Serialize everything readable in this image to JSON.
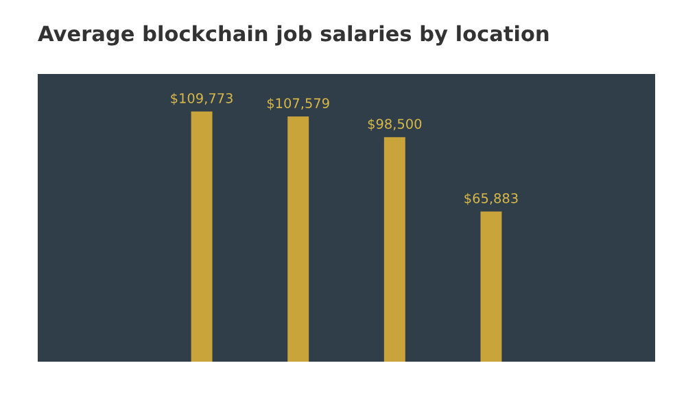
{
  "chart_data": {
    "type": "bar",
    "title": "Average blockchain job salaries by location",
    "categories": [
      null,
      null,
      null,
      null
    ],
    "values": [
      109773,
      107579,
      98500,
      65883
    ],
    "value_labels": [
      "$109,773",
      "$107,579",
      "$98,500",
      "$65,883"
    ],
    "color": "#c9a43a",
    "grid": false,
    "legend": false
  }
}
